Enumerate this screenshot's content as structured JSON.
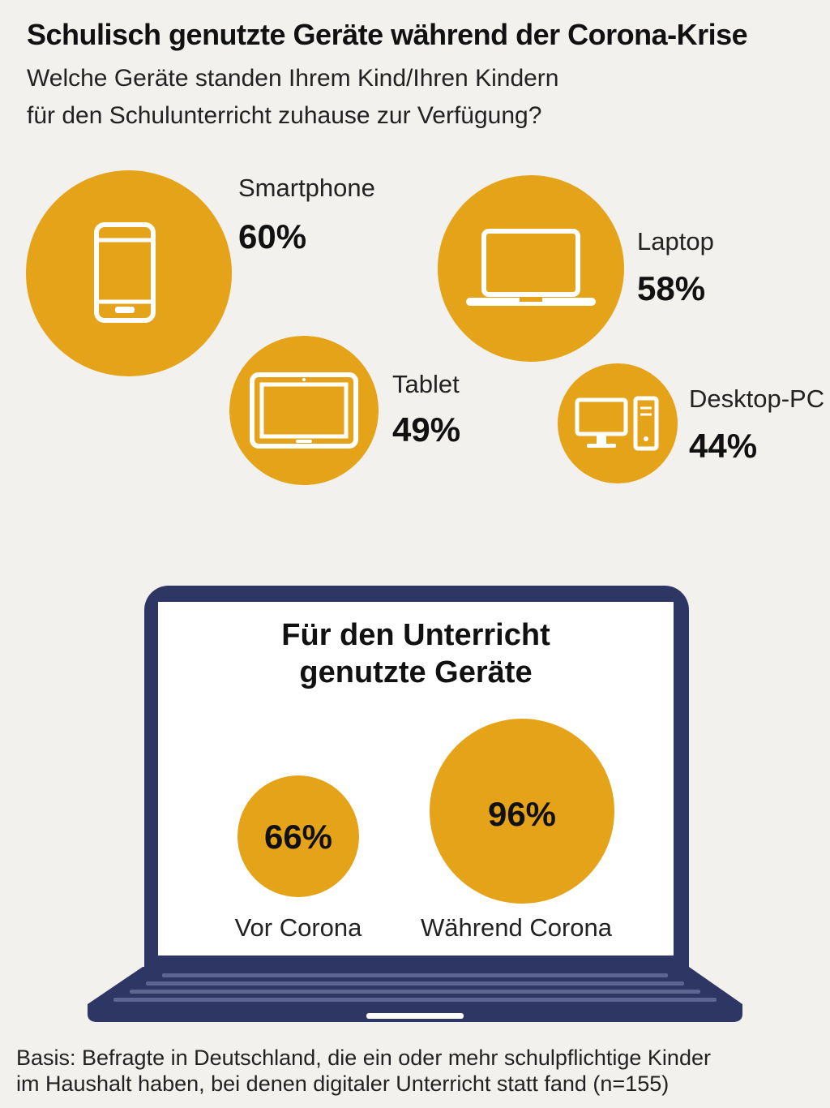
{
  "title": "Schulisch genutzte Geräte während der Corona-Krise",
  "subtitle_line1": "Welche Geräte standen Ihrem Kind/Ihren Kindern",
  "subtitle_line2": "für den Schulunterricht zuhause zur Verfügung?",
  "accent_color": "#e4a318",
  "laptop_color": "#2e3764",
  "devices": [
    {
      "label": "Smartphone",
      "value": "60%",
      "icon": "smartphone-icon"
    },
    {
      "label": "Laptop",
      "value": "58%",
      "icon": "laptop-icon"
    },
    {
      "label": "Tablet",
      "value": "49%",
      "icon": "tablet-icon"
    },
    {
      "label": "Desktop-PC",
      "value": "44%",
      "icon": "desktop-pc-icon"
    }
  ],
  "comparison_title_line1": "Für den Unterricht",
  "comparison_title_line2": "genutzte Geräte",
  "comparison": [
    {
      "label": "Vor Corona",
      "value": "66%"
    },
    {
      "label": "Während Corona",
      "value": "96%"
    }
  ],
  "footnote_line1": "Basis: Befragte in Deutschland, die ein oder mehr schulpflichtige Kinder",
  "footnote_line2": "im Haushalt haben, bei denen digitaler Unterricht statt fand (n=155)",
  "chart_data": {
    "type": "bubble",
    "categories": [
      "Smartphone",
      "Laptop",
      "Tablet",
      "Desktop-PC"
    ],
    "values": [
      60,
      58,
      49,
      44
    ],
    "comparison": {
      "categories": [
        "Vor Corona",
        "Während Corona"
      ],
      "values": [
        66,
        96
      ]
    }
  }
}
